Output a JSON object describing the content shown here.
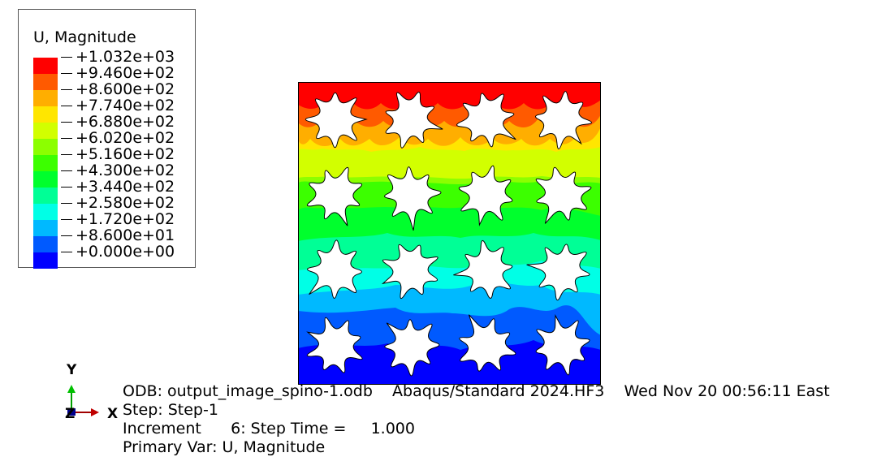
{
  "legend": {
    "title": "U, Magnitude",
    "labels": [
      "+1.032e+03",
      "+9.460e+02",
      "+8.600e+02",
      "+7.740e+02",
      "+6.880e+02",
      "+6.020e+02",
      "+5.160e+02",
      "+4.300e+02",
      "+3.440e+02",
      "+2.580e+02",
      "+1.720e+02",
      "+8.600e+01",
      "+0.000e+00"
    ],
    "colors": [
      "#ff0000",
      "#ff5a00",
      "#ffae00",
      "#ffe600",
      "#d2ff00",
      "#8cff00",
      "#3cff00",
      "#00ff2d",
      "#00ff96",
      "#00ffe6",
      "#00b9ff",
      "#005aff",
      "#0000ff"
    ]
  },
  "triad": {
    "y_label": "Y",
    "x_label": "X",
    "z_label": "Z"
  },
  "info": {
    "odb": "ODB: output_image_spino-1.odb    Abaqus/Standard 2024.HF3    Wed Nov 20 00:56:11 East",
    "step": "Step: Step-1",
    "increment": "Increment      6: Step Time =     1.000",
    "primary_var": "Primary Var: U, Magnitude"
  }
}
